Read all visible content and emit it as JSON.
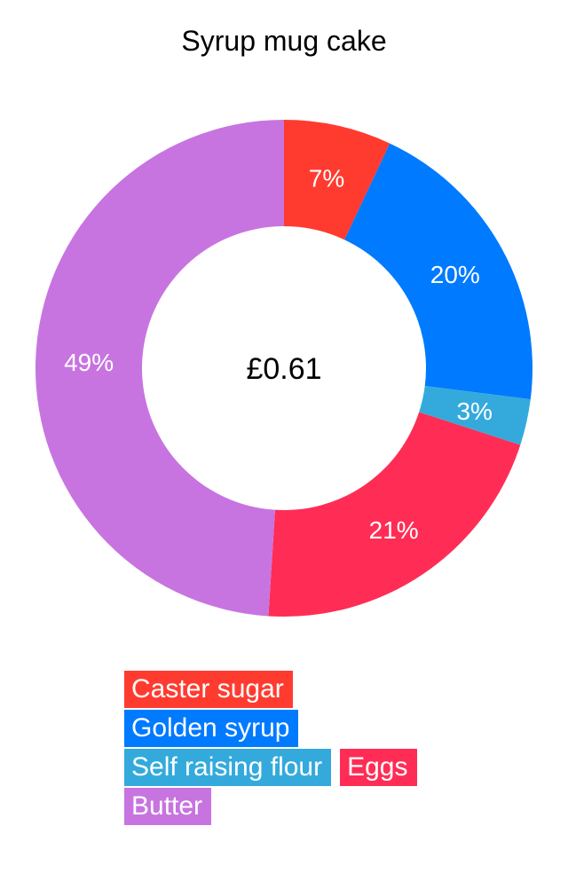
{
  "chart_data": {
    "type": "pie",
    "variant": "donut",
    "title": "Syrup mug cake",
    "center_label": "£0.61",
    "slices": [
      {
        "name": "Caster sugar",
        "value": 7,
        "label": "7%",
        "color": "#FF3B30"
      },
      {
        "name": "Golden syrup",
        "value": 20,
        "label": "20%",
        "color": "#007AFF"
      },
      {
        "name": "Self raising flour",
        "value": 3,
        "label": "3%",
        "color": "#34AADC"
      },
      {
        "name": "Eggs",
        "value": 21,
        "label": "21%",
        "color": "#FF2D55"
      },
      {
        "name": "Butter",
        "value": 49,
        "label": "49%",
        "color": "#C774E0"
      }
    ],
    "legend_placement": "bottom"
  },
  "legend": {
    "rows": [
      [
        {
          "label": "Caster sugar",
          "color": "#FF3B30"
        }
      ],
      [
        {
          "label": "Golden syrup",
          "color": "#007AFF"
        }
      ],
      [
        {
          "label": "Self raising flour",
          "color": "#34AADC"
        },
        {
          "label": "Eggs",
          "color": "#FF2D55"
        }
      ],
      [
        {
          "label": "Butter",
          "color": "#C774E0"
        }
      ]
    ]
  }
}
